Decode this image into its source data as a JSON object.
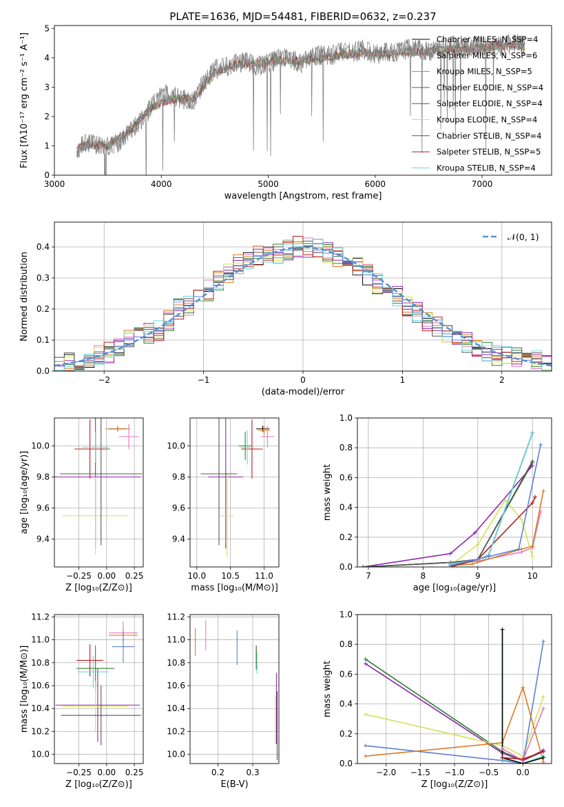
{
  "figure_title": "PLATE=1636, MJD=54481, FIBERID=0632, z=0.237",
  "model_colors": [
    "#000000",
    "#e377c2",
    "#d97b1f",
    "#2e7d32",
    "#8e24aa",
    "#d4e157",
    "#555555",
    "#b71c1c",
    "#64d8d8"
  ],
  "chart_data": [
    {
      "id": "spectrum",
      "type": "line",
      "xlabel": "wavelength [Angstrom, rest frame]",
      "ylabel": "Flux [fλ10⁻¹⁷ erg cm⁻² s⁻¹ A⁻¹]",
      "xlim": [
        3000,
        7650
      ],
      "ylim": [
        0,
        5.1
      ],
      "xticks": [
        3000,
        4000,
        5000,
        6000,
        7000
      ],
      "yticks": [
        0,
        1,
        2,
        3,
        4,
        5
      ],
      "legend_position": "top-right",
      "legend": [
        "Chabrier MILES, N_SSP=4",
        "Salpeter MILES, N_SSP=6",
        "Kroupa MILES, N_SSP=5",
        "Chabrier ELODIE, N_SSP=4",
        "Salpeter ELODIE, N_SSP=4",
        "Kroupa ELODIE, N_SSP=4",
        "Chabrier STELIB, N_SSP=4",
        "Salpeter STELIB, N_SSP=5",
        "Kroupa STELIB, N_SSP=4"
      ],
      "data_series": {
        "name": "",
        "x": [
          3210,
          3250,
          3300,
          3400,
          3500,
          3600,
          3700,
          3800,
          3900,
          4000,
          4100,
          4200,
          4300,
          4400,
          4500,
          4600,
          4700,
          4800,
          4900,
          5000,
          5100,
          5200,
          5300,
          5400,
          5500,
          5600,
          5700,
          5800,
          5900,
          6000,
          6100,
          6200,
          6300,
          6400,
          6500,
          6600,
          6700,
          6800,
          6900,
          7000,
          7100,
          7200,
          7300,
          7400
        ],
        "y": [
          0.85,
          1.0,
          1.1,
          1.05,
          1.0,
          1.1,
          1.5,
          1.8,
          2.3,
          2.8,
          2.7,
          2.6,
          2.5,
          3.2,
          3.6,
          3.7,
          3.8,
          3.9,
          3.7,
          3.8,
          4.0,
          4.0,
          3.8,
          4.0,
          4.1,
          4.1,
          4.2,
          4.2,
          4.3,
          4.1,
          4.2,
          4.2,
          4.3,
          4.3,
          4.2,
          4.3,
          4.4,
          4.3,
          4.4,
          4.4,
          4.4,
          4.4,
          4.5,
          4.4
        ]
      },
      "model_series": {
        "x": [
          3210,
          3300,
          3500,
          3700,
          3900,
          4100,
          4300,
          4500,
          4700,
          4900,
          5100,
          5300,
          5500,
          5700,
          5900,
          6100,
          6300,
          6500,
          6700,
          6900,
          7100,
          7300,
          7400
        ],
        "y": [
          0.9,
          1.05,
          1.0,
          1.5,
          2.3,
          2.6,
          2.6,
          3.5,
          3.8,
          3.8,
          3.9,
          3.9,
          4.0,
          4.1,
          4.2,
          4.1,
          4.2,
          4.2,
          4.3,
          4.3,
          4.4,
          4.4,
          4.4
        ]
      }
    },
    {
      "id": "residuals",
      "type": "line",
      "xlabel": "(data-model)/error",
      "ylabel": "Normed distribution",
      "xlim": [
        -2.5,
        2.5
      ],
      "ylim": [
        0,
        0.48
      ],
      "xticks": [
        -2,
        -1,
        0,
        1,
        2
      ],
      "yticks": [
        0.0,
        0.1,
        0.2,
        0.3,
        0.4
      ],
      "grid": true,
      "legend_position": "top-right",
      "legend": [
        "𝒩(0, 1)"
      ],
      "reference_curve": {
        "name": "𝒩(0, 1)",
        "mean": 0,
        "sigma": 1
      },
      "histogram_bin_edges": [
        -2.5,
        -2.4,
        -2.3,
        -2.2,
        -2.1,
        -2.0,
        -1.9,
        -1.8,
        -1.7,
        -1.6,
        -1.5,
        -1.4,
        -1.3,
        -1.2,
        -1.1,
        -1.0,
        -0.9,
        -0.8,
        -0.7,
        -0.6,
        -0.5,
        -0.4,
        -0.3,
        -0.2,
        -0.1,
        0.0,
        0.1,
        0.2,
        0.3,
        0.4,
        0.5,
        0.6,
        0.7,
        0.8,
        0.9,
        1.0,
        1.1,
        1.2,
        1.3,
        1.4,
        1.5,
        1.6,
        1.7,
        1.8,
        1.9,
        2.0,
        2.1,
        2.2,
        2.3,
        2.4,
        2.5
      ],
      "histogram_values": [
        0.02,
        0.025,
        0.03,
        0.04,
        0.05,
        0.06,
        0.08,
        0.1,
        0.11,
        0.12,
        0.13,
        0.16,
        0.2,
        0.21,
        0.24,
        0.26,
        0.29,
        0.31,
        0.34,
        0.36,
        0.37,
        0.38,
        0.38,
        0.39,
        0.4,
        0.4,
        0.39,
        0.38,
        0.37,
        0.35,
        0.34,
        0.31,
        0.28,
        0.26,
        0.24,
        0.21,
        0.19,
        0.16,
        0.14,
        0.12,
        0.1,
        0.09,
        0.07,
        0.06,
        0.05,
        0.05,
        0.04,
        0.035,
        0.03,
        0.025
      ]
    },
    {
      "id": "age-vs-Z",
      "type": "scatter",
      "xlabel": "Z [log₁₀(Z/Z⊙)]",
      "ylabel": "age  [log₁₀(age/yr)]",
      "xlim": [
        -0.47,
        0.33
      ],
      "ylim": [
        9.22,
        10.18
      ],
      "xticks": [
        -0.25,
        0.0,
        0.25
      ],
      "xticklabels": [
        "−0.25",
        "0.00",
        "0.25"
      ],
      "yticks": [
        9.4,
        9.6,
        9.8,
        10.0
      ],
      "grid": true,
      "points": [
        {
          "x": 0.1,
          "y": 10.11,
          "xerr": 0.08,
          "yerr": 0.01,
          "c": 0
        },
        {
          "x": 0.2,
          "y": 10.06,
          "xerr": 0.09,
          "yerr": 0.08,
          "c": 1
        },
        {
          "x": 0.1,
          "y": 10.11,
          "xerr": 0.11,
          "yerr": 0.02,
          "c": 2
        },
        {
          "x": -0.1,
          "y": 9.98,
          "xerr": 0.13,
          "yerr": 0.1,
          "c": 3
        },
        {
          "x": -0.1,
          "y": 9.8,
          "xerr": 0.41,
          "yerr": 0.45,
          "c": 4
        },
        {
          "x": -0.1,
          "y": 9.55,
          "xerr": 0.3,
          "yerr": 0.25,
          "c": 5
        },
        {
          "x": -0.05,
          "y": 9.82,
          "xerr": 0.37,
          "yerr": 0.46,
          "c": 6
        },
        {
          "x": -0.15,
          "y": 9.98,
          "xerr": 0.14,
          "yerr": 0.19,
          "c": 7
        },
        {
          "x": -0.1,
          "y": 9.99,
          "xerr": 0.12,
          "yerr": 0.1,
          "c": 8
        }
      ]
    },
    {
      "id": "age-vs-mass",
      "type": "scatter",
      "xlabel": "mass [log₁₀(M/M⊙)]",
      "ylabel": "",
      "xlim": [
        9.9,
        11.22
      ],
      "ylim": [
        9.22,
        10.18
      ],
      "xticks": [
        10.0,
        10.5,
        11.0
      ],
      "yticks": [
        9.4,
        9.6,
        9.8,
        10.0
      ],
      "grid": true,
      "points": [
        {
          "x": 10.98,
          "y": 10.11,
          "xerr": 0.1,
          "yerr": 0.02,
          "c": 0
        },
        {
          "x": 11.05,
          "y": 10.06,
          "xerr": 0.1,
          "yerr": 0.07,
          "c": 1
        },
        {
          "x": 11.0,
          "y": 10.1,
          "xerr": 0.09,
          "yerr": 0.03,
          "c": 2
        },
        {
          "x": 10.72,
          "y": 10.0,
          "xerr": 0.1,
          "yerr": 0.09,
          "c": 3
        },
        {
          "x": 10.43,
          "y": 9.8,
          "xerr": 0.26,
          "yerr": 0.46,
          "c": 4
        },
        {
          "x": 10.45,
          "y": 9.55,
          "xerr": 0.1,
          "yerr": 0.27,
          "c": 5
        },
        {
          "x": 10.33,
          "y": 9.82,
          "xerr": 0.27,
          "yerr": 0.46,
          "c": 6
        },
        {
          "x": 10.82,
          "y": 9.98,
          "xerr": 0.16,
          "yerr": 0.19,
          "c": 7
        },
        {
          "x": 10.75,
          "y": 9.99,
          "xerr": 0.1,
          "yerr": 0.11,
          "c": 8
        }
      ]
    },
    {
      "id": "mass-weight-vs-age",
      "type": "line",
      "xlabel": "age  [log₁₀(age/yr)]",
      "ylabel": "mass weight",
      "xlim": [
        6.8,
        10.35
      ],
      "ylim": [
        0,
        1.0
      ],
      "xticks": [
        7,
        8,
        9,
        10
      ],
      "yticks": [
        0.0,
        0.2,
        0.4,
        0.6,
        0.8,
        1.0
      ],
      "grid": true,
      "series": [
        {
          "c": 0,
          "x": [
            6.9,
            8.5,
            9.0,
            9.2,
            10.0
          ],
          "y": [
            0.0,
            0.03,
            0.05,
            0.08,
            0.9
          ]
        },
        {
          "c": 1,
          "x": [
            8.5,
            9.0,
            9.8,
            10.0,
            10.15
          ],
          "y": [
            0.02,
            0.04,
            0.1,
            0.13,
            0.37
          ]
        },
        {
          "c": 2,
          "x": [
            8.5,
            8.9,
            9.8,
            10.0,
            10.2
          ],
          "y": [
            0.01,
            0.02,
            0.12,
            0.14,
            0.51
          ]
        },
        {
          "c": 3,
          "x": [
            6.9,
            8.5,
            9.0,
            10.0
          ],
          "y": [
            0.0,
            0.03,
            0.05,
            0.7
          ]
        },
        {
          "c": 4,
          "x": [
            6.9,
            8.5,
            8.95,
            10.0
          ],
          "y": [
            0.0,
            0.09,
            0.23,
            0.68
          ]
        },
        {
          "c": 5,
          "x": [
            8.5,
            9.0,
            9.5,
            9.8,
            10.0
          ],
          "y": [
            0.01,
            0.15,
            0.45,
            0.32,
            0.07
          ]
        },
        {
          "c": 6,
          "x": [
            6.9,
            8.5,
            9.0,
            10.0
          ],
          "y": [
            0.0,
            0.03,
            0.05,
            0.71
          ]
        },
        {
          "c": 7,
          "x": [
            8.5,
            9.0,
            10.0,
            10.05
          ],
          "y": [
            0.0,
            0.05,
            0.43,
            0.47
          ]
        },
        {
          "c": 8,
          "x": [
            8.5,
            9.0,
            9.2,
            10.0
          ],
          "y": [
            0.02,
            0.05,
            0.08,
            0.9
          ]
        },
        {
          "c": -1,
          "x": [
            8.5,
            9.2,
            9.75,
            10.15
          ],
          "y": [
            0.01,
            0.07,
            0.12,
            0.82
          ]
        }
      ]
    },
    {
      "id": "mass-vs-Z",
      "type": "scatter",
      "xlabel": "Z [log₁₀(Z/Z⊙)]",
      "ylabel": "mass [log₁₀(M/M⊙)]",
      "xlim": [
        -0.47,
        0.33
      ],
      "ylim": [
        9.92,
        11.22
      ],
      "xticks": [
        -0.25,
        0.0,
        0.25
      ],
      "xticklabels": [
        "−0.25",
        "0.00",
        "0.25"
      ],
      "yticks": [
        10.0,
        10.2,
        10.4,
        10.6,
        10.8,
        11.0,
        11.2
      ],
      "grid": true,
      "points": [
        {
          "x": 0.15,
          "y": 11.04,
          "xerr": 0.13,
          "yerr": 0.08,
          "c": 2
        },
        {
          "x": 0.15,
          "y": 11.06,
          "xerr": 0.13,
          "yerr": 0.1,
          "c": 1
        },
        {
          "x": 0.15,
          "y": 10.94,
          "xerr": 0.1,
          "yerr": 0.14,
          "c": -1
        },
        {
          "x": -0.1,
          "y": 10.75,
          "xerr": 0.17,
          "yerr": 0.2,
          "c": 3
        },
        {
          "x": -0.08,
          "y": 10.43,
          "xerr": 0.38,
          "yerr": 0.32,
          "c": 4
        },
        {
          "x": -0.1,
          "y": 10.42,
          "xerr": 0.3,
          "yerr": 0.22,
          "c": 5
        },
        {
          "x": -0.05,
          "y": 10.34,
          "xerr": 0.36,
          "yerr": 0.26,
          "c": 6
        },
        {
          "x": -0.15,
          "y": 10.82,
          "xerr": 0.12,
          "yerr": 0.14,
          "c": 7
        },
        {
          "x": -0.12,
          "y": 10.72,
          "xerr": 0.14,
          "yerr": 0.14,
          "c": 8
        }
      ]
    },
    {
      "id": "mass-vs-EBV",
      "type": "scatter",
      "xlabel": "E(B-V)",
      "ylabel": "",
      "xlim": [
        0.12,
        0.375
      ],
      "ylim": [
        9.92,
        11.22
      ],
      "xticks": [
        0.2,
        0.3
      ],
      "yticks": [
        10.0,
        10.2,
        10.4,
        10.6,
        10.8,
        11.0,
        11.2
      ],
      "grid": true,
      "points": [
        {
          "x": 0.135,
          "y": 10.98,
          "xerr": 0,
          "yerr": 0.12,
          "c": 2
        },
        {
          "x": 0.165,
          "y": 11.04,
          "xerr": 0,
          "yerr": 0.13,
          "c": 1
        },
        {
          "x": 0.255,
          "y": 10.93,
          "xerr": 0,
          "yerr": 0.15,
          "c": -1
        },
        {
          "x": 0.31,
          "y": 10.88,
          "xerr": 0,
          "yerr": 0.07,
          "c": 7
        },
        {
          "x": 0.312,
          "y": 10.8,
          "xerr": 0,
          "yerr": 0.1,
          "c": 8
        },
        {
          "x": 0.31,
          "y": 10.84,
          "xerr": 0,
          "yerr": 0.1,
          "c": 3
        },
        {
          "x": 0.365,
          "y": 10.3,
          "xerr": 0,
          "yerr": 0.21,
          "c": 5
        },
        {
          "x": 0.368,
          "y": 10.4,
          "xerr": 0,
          "yerr": 0.31,
          "c": 4
        },
        {
          "x": 0.37,
          "y": 10.25,
          "xerr": 0,
          "yerr": 0.3,
          "c": 6
        }
      ]
    },
    {
      "id": "mass-weight-vs-Z",
      "type": "line",
      "xlabel": "Z [log₁₀(Z/Z⊙)]",
      "ylabel": "mass weight",
      "xlim": [
        -2.42,
        0.42
      ],
      "ylim": [
        0,
        1.0
      ],
      "xticks": [
        -2.0,
        -1.5,
        -1.0,
        -0.5,
        0.0
      ],
      "xticklabels": [
        "−2.0",
        "−1.5",
        "−1.0",
        "−0.5",
        "0.0"
      ],
      "yticks": [
        0.0,
        0.2,
        0.4,
        0.6,
        0.8,
        1.0
      ],
      "grid": true,
      "series": [
        {
          "c": 3,
          "x": [
            -2.3,
            -0.3,
            0.0,
            0.3
          ],
          "y": [
            0.7,
            0.08,
            0.02,
            0.08
          ]
        },
        {
          "c": 4,
          "x": [
            -2.3,
            -0.3,
            0.0,
            0.3
          ],
          "y": [
            0.67,
            0.07,
            0.02,
            0.09
          ]
        },
        {
          "c": 5,
          "x": [
            -2.3,
            -0.3,
            0.0,
            0.3
          ],
          "y": [
            0.33,
            0.12,
            0.05,
            0.45
          ]
        },
        {
          "c": -1,
          "x": [
            -2.3,
            -0.3,
            0.0,
            0.3
          ],
          "y": [
            0.12,
            0.02,
            0.0,
            0.82
          ]
        },
        {
          "c": 2,
          "x": [
            -2.3,
            -0.3,
            0.0,
            0.3
          ],
          "y": [
            0.05,
            0.14,
            0.51,
            0.01
          ]
        },
        {
          "c": 8,
          "x": [
            -0.3,
            -0.3,
            0.0,
            0.3
          ],
          "y": [
            0.9,
            0.03,
            0.0,
            0.05
          ]
        },
        {
          "c": 0,
          "x": [
            -0.3,
            -0.3,
            0.0,
            0.3
          ],
          "y": [
            0.9,
            0.04,
            0.0,
            0.04
          ]
        },
        {
          "c": 1,
          "x": [
            -0.3,
            0.0,
            0.3
          ],
          "y": [
            0.1,
            0.02,
            0.37
          ]
        },
        {
          "c": 7,
          "x": [
            -0.3,
            0.0,
            0.3
          ],
          "y": [
            0.04,
            0.03,
            0.08
          ]
        }
      ]
    }
  ]
}
